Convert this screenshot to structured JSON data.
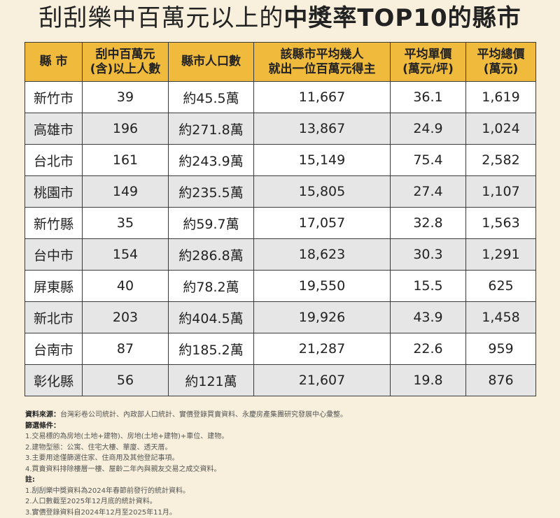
{
  "title": {
    "part1": "刮刮樂中百萬元以上的",
    "part2": "中獎率TOP10的縣市"
  },
  "table": {
    "headers": [
      [
        "縣 市"
      ],
      [
        "刮中百萬元",
        "(含)以上人數"
      ],
      [
        "縣市人口數"
      ],
      [
        "該縣市平均幾人",
        "就出一位百萬元得主"
      ],
      [
        "平均單價",
        "(萬元/坪)"
      ],
      [
        "平均總價",
        "(萬元)"
      ]
    ],
    "rows": [
      [
        "新竹市",
        "39",
        "約45.5萬",
        "11,667",
        "36.1",
        "1,619"
      ],
      [
        "高雄市",
        "196",
        "約271.8萬",
        "13,867",
        "24.9",
        "1,024"
      ],
      [
        "台北市",
        "161",
        "約243.9萬",
        "15,149",
        "75.4",
        "2,582"
      ],
      [
        "桃園市",
        "149",
        "約235.5萬",
        "15,805",
        "27.4",
        "1,107"
      ],
      [
        "新竹縣",
        "35",
        "約59.7萬",
        "17,057",
        "32.8",
        "1,563"
      ],
      [
        "台中市",
        "154",
        "約286.8萬",
        "18,623",
        "30.3",
        "1,291"
      ],
      [
        "屏東縣",
        "40",
        "約78.2萬",
        "19,550",
        "15.5",
        "625"
      ],
      [
        "新北市",
        "203",
        "約404.5萬",
        "19,926",
        "43.9",
        "1,458"
      ],
      [
        "台南市",
        "87",
        "約185.2萬",
        "21,287",
        "22.6",
        "959"
      ],
      [
        "彰化縣",
        "56",
        "約121萬",
        "21,607",
        "19.8",
        "876"
      ]
    ]
  },
  "notes": {
    "source_label": "資料來源：",
    "source": "台灣彩卷公司統計、內政部人口統計、實價登錄買賣資料、永慶房產集團研究發展中心彙整。",
    "filter_label": "篩選條件：",
    "filters": [
      "1.交易標的為房地(土地+建物)、房地(土地+建物)+車位、建物。",
      "2.建物型態：公寓、住宅大樓、華廈、透天厝。",
      "3.主要用途僅篩選住家、住商用及其他登記事項。",
      "4.買賣資料排除樓層一樓、屋齡二年內與親友交易之成交資料。"
    ],
    "remark_label": "註:",
    "remarks": [
      "1.刮刮樂中獎資料為2024年春節前發行的統計資料。",
      "2.人口數截至2025年12月底的統計資料。",
      "3.實價登錄資料自2024年12月至2025年11月。"
    ]
  }
}
